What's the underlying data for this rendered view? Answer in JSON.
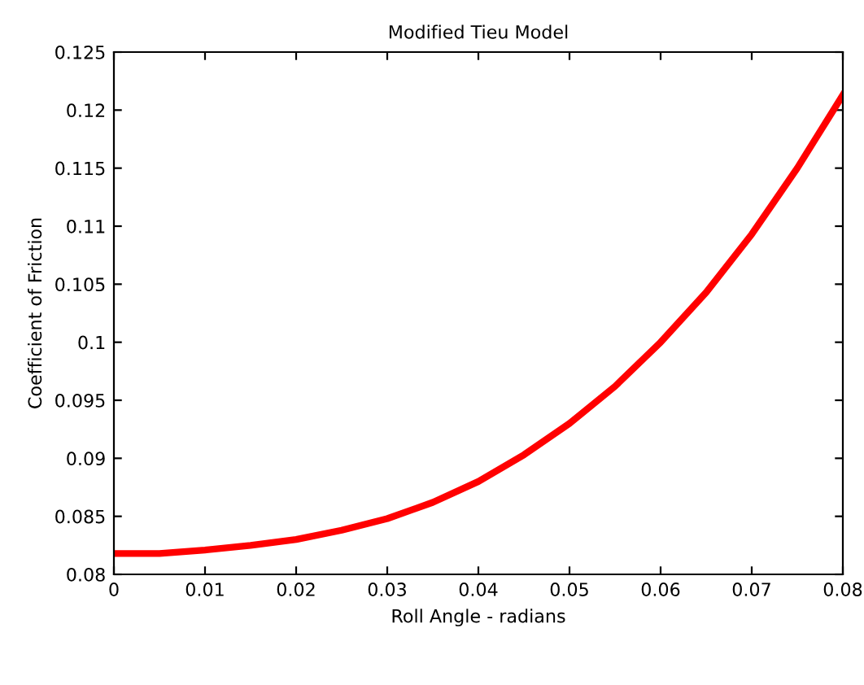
{
  "chart_data": {
    "type": "line",
    "title": "Modified Tieu Model",
    "xlabel": "Roll Angle - radians",
    "ylabel": "Coefficient of Friction",
    "x": [
      0,
      0.005,
      0.01,
      0.015,
      0.02,
      0.025,
      0.03,
      0.035,
      0.04,
      0.045,
      0.05,
      0.055,
      0.06,
      0.065,
      0.07,
      0.075,
      0.08
    ],
    "series": [
      {
        "color": "#ff0000",
        "values": [
          0.0818,
          0.0818,
          0.0821,
          0.0825,
          0.083,
          0.0838,
          0.0848,
          0.0862,
          0.088,
          0.0903,
          0.093,
          0.0962,
          0.1,
          0.1043,
          0.1093,
          0.115,
          0.1213
        ]
      }
    ],
    "xlim": [
      0,
      0.08
    ],
    "xticks": [
      0,
      0.01,
      0.02,
      0.03,
      0.04,
      0.05,
      0.06,
      0.07,
      0.08
    ],
    "ylim": [
      0.08,
      0.125
    ],
    "yticks": [
      0.08,
      0.085,
      0.09,
      0.095,
      0.1,
      0.105,
      0.11,
      0.115,
      0.12,
      0.125
    ],
    "grid": false,
    "legend": false,
    "marker": "none",
    "line_style": "solid"
  }
}
